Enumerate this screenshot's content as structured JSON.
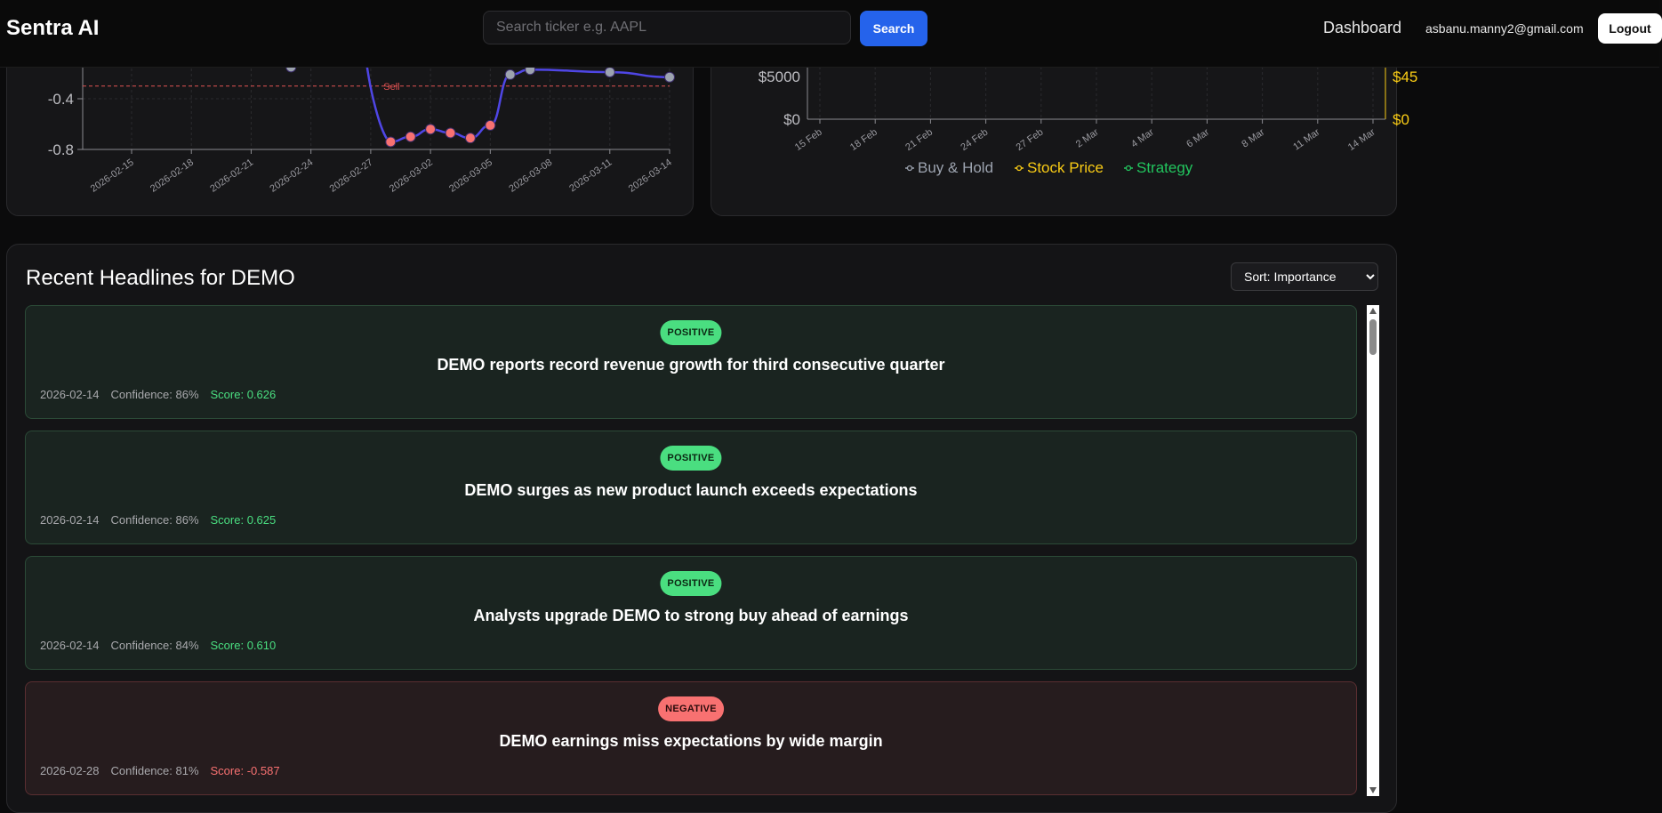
{
  "app": {
    "brand": "Sentra AI"
  },
  "search": {
    "placeholder": "Search ticker e.g. AAPL",
    "button": "Search"
  },
  "nav": {
    "dashboard": "Dashboard",
    "email": "asbanu.manny2@gmail.com",
    "logout": "Logout"
  },
  "colors": {
    "accent": "#2563eb",
    "positive": "#4ade80",
    "negative": "#f87171",
    "series_line": "#4f46e5",
    "stock_price": "#facc15",
    "strategy": "#22c55e",
    "buy_hold": "#9ca3af"
  },
  "chart_data": [
    {
      "type": "line",
      "title": "",
      "x_ticks": [
        "2026-02-15",
        "2026-02-18",
        "2026-02-21",
        "2026-02-24",
        "2026-02-27",
        "2026-03-02",
        "2026-03-05",
        "2026-03-08",
        "2026-03-11",
        "2026-03-14"
      ],
      "y_ticks": [
        "-0.4",
        "-0.8"
      ],
      "annotation": "Sell",
      "sell_threshold": -0.3,
      "visible_range": [
        -0.8,
        -0.15
      ],
      "points": [
        {
          "x": "2026-02-23",
          "y": -0.15,
          "signal": "neutral"
        },
        {
          "x": "2026-02-28",
          "y": -0.74,
          "signal": "sell"
        },
        {
          "x": "2026-03-01",
          "y": -0.7,
          "signal": "sell"
        },
        {
          "x": "2026-03-02",
          "y": -0.64,
          "signal": "sell"
        },
        {
          "x": "2026-03-03",
          "y": -0.67,
          "signal": "sell"
        },
        {
          "x": "2026-03-04",
          "y": -0.71,
          "signal": "sell"
        },
        {
          "x": "2026-03-05",
          "y": -0.61,
          "signal": "sell"
        },
        {
          "x": "2026-03-06",
          "y": -0.21,
          "signal": "neutral"
        },
        {
          "x": "2026-03-07",
          "y": -0.17,
          "signal": "neutral"
        },
        {
          "x": "2026-03-11",
          "y": -0.19,
          "signal": "neutral"
        },
        {
          "x": "2026-03-14",
          "y": -0.23,
          "signal": "neutral"
        }
      ]
    },
    {
      "type": "line",
      "title": "",
      "x_ticks": [
        "15 Feb",
        "18 Feb",
        "21 Feb",
        "24 Feb",
        "27 Feb",
        "2 Mar",
        "4 Mar",
        "6 Mar",
        "8 Mar",
        "11 Mar",
        "14 Mar"
      ],
      "y_left_ticks": [
        "$5000",
        "$0"
      ],
      "y_right_ticks": [
        "$45",
        "$0"
      ],
      "legend_position": "bottom",
      "series": [
        {
          "name": "Buy & Hold"
        },
        {
          "name": "Stock Price"
        },
        {
          "name": "Strategy"
        }
      ]
    }
  ],
  "news": {
    "title": "Recent Headlines for DEMO",
    "sort_label": "Sort: Importance",
    "items": [
      {
        "sentiment": "POSITIVE",
        "headline": "DEMO reports record revenue growth for third consecutive quarter",
        "date": "2026-02-14",
        "confidence": "Confidence: 86%",
        "score": "Score: 0.626"
      },
      {
        "sentiment": "POSITIVE",
        "headline": "DEMO surges as new product launch exceeds expectations",
        "date": "2026-02-14",
        "confidence": "Confidence: 86%",
        "score": "Score: 0.625"
      },
      {
        "sentiment": "POSITIVE",
        "headline": "Analysts upgrade DEMO to strong buy ahead of earnings",
        "date": "2026-02-14",
        "confidence": "Confidence: 84%",
        "score": "Score: 0.610"
      },
      {
        "sentiment": "NEGATIVE",
        "headline": "DEMO earnings miss expectations by wide margin",
        "date": "2026-02-28",
        "confidence": "Confidence: 81%",
        "score": "Score: -0.587"
      }
    ]
  }
}
